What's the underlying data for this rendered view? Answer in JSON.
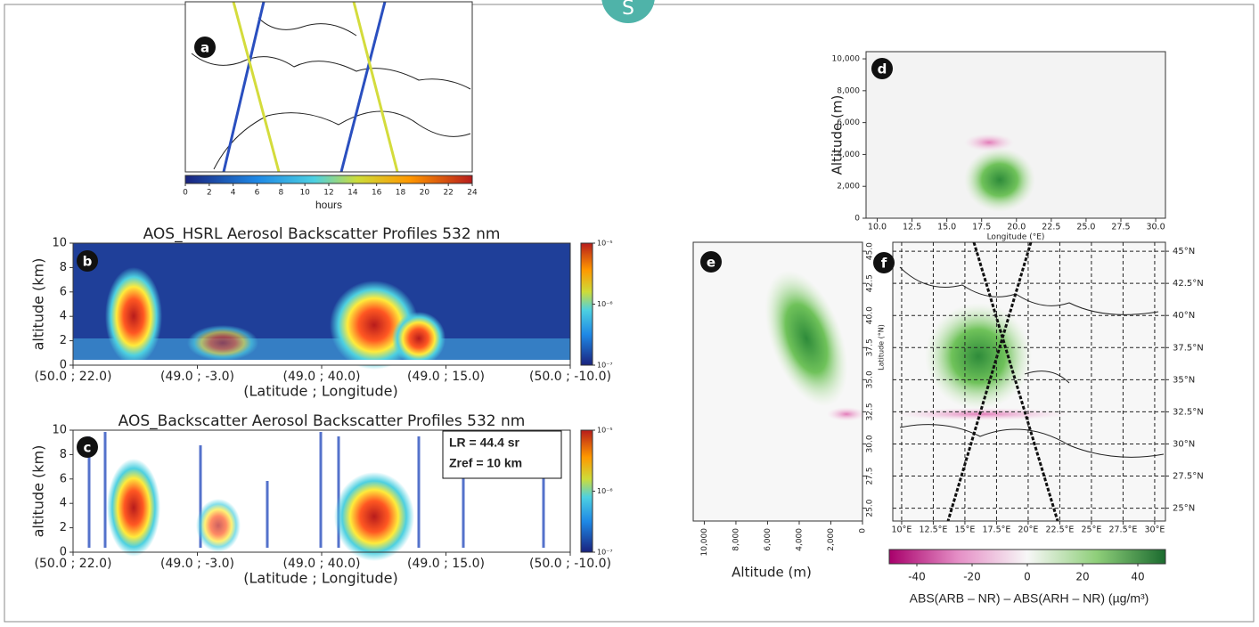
{
  "badge": "S",
  "chart_data": [
    {
      "type": "map",
      "panel": "a",
      "colorbar": {
        "label": "hours",
        "lim": [
          0,
          24
        ],
        "ticks": [
          0,
          2,
          4,
          6,
          8,
          10,
          12,
          14,
          16,
          18,
          20,
          22,
          24
        ]
      }
    },
    {
      "type": "heatmap",
      "panel": "b",
      "title": "AOS_HSRL Aerosol Backscatter Profiles 532 nm",
      "ylabel": "altitude (km)",
      "xlabel": "(Latitude ; Longitude)",
      "categories": [
        "(50.0 ; 22.0)",
        "(49.0 ; -3.0)",
        "(49.0 ; 40.0)",
        "(49.0 ; 15.0)",
        "(50.0 ; -10.0)"
      ],
      "ylim": [
        0,
        10
      ],
      "yticks": [
        0,
        2,
        4,
        6,
        8,
        10
      ],
      "colorbar": {
        "log": true,
        "lim": [
          1e-07,
          1e-05
        ],
        "ticks": [
          {
            "value": 1e-05,
            "label": "10⁻⁵"
          },
          {
            "value": 1e-06,
            "label": "10⁻⁶"
          },
          {
            "value": 1e-07,
            "label": "10⁻⁷"
          }
        ]
      }
    },
    {
      "type": "heatmap",
      "panel": "c",
      "title": "AOS_Backscatter Aerosol Backscatter Profiles 532 nm",
      "ylabel": "altitude (km)",
      "xlabel": "(Latitude ; Longitude)",
      "categories": [
        "(50.0 ; 22.0)",
        "(49.0 ; -3.0)",
        "(49.0 ; 40.0)",
        "(49.0 ; 15.0)",
        "(50.0 ; -10.0)"
      ],
      "ylim": [
        0,
        10
      ],
      "yticks": [
        0,
        2,
        4,
        6,
        8,
        10
      ],
      "annotations": [
        "LR = 44.4 sr",
        "Zref = 10 km"
      ],
      "colorbar": {
        "log": true,
        "lim": [
          1e-07,
          1e-05
        ],
        "ticks": [
          {
            "value": 1e-05,
            "label": "10⁻⁵"
          },
          {
            "value": 1e-06,
            "label": "10⁻⁶"
          },
          {
            "value": 1e-07,
            "label": "10⁻⁷"
          }
        ]
      }
    },
    {
      "type": "heatmap",
      "panel": "d",
      "ylabel": "Altitude (m)",
      "xlabel": "Longitude (°E)",
      "xlim": [
        9.2,
        30.7
      ],
      "xticks": [
        {
          "value": 10,
          "label": "10.0"
        },
        12.5,
        {
          "value": 15,
          "label": "15.0"
        },
        17.5,
        {
          "value": 20,
          "label": "20.0"
        },
        22.5,
        {
          "value": 25,
          "label": "25.0"
        },
        27.5,
        {
          "value": 30,
          "label": "30.0"
        }
      ],
      "ylim": [
        0,
        10450
      ],
      "yticks": [
        0,
        {
          "value": 2000,
          "label": "2,000"
        },
        {
          "value": 4000,
          "label": "4,000"
        },
        {
          "value": 6000,
          "label": "6,000"
        },
        {
          "value": 8000,
          "label": "8,000"
        },
        {
          "value": 10000,
          "label": "10,000"
        }
      ]
    },
    {
      "type": "heatmap",
      "panel": "e",
      "ylabel": "Latitude (°N)",
      "xlabel": "Altitude (m)",
      "xlim": [
        10700,
        0
      ],
      "xticks": [
        {
          "value": 10000,
          "label": "10,000"
        },
        {
          "value": 8000,
          "label": "8,000"
        },
        {
          "value": 6000,
          "label": "6,000"
        },
        {
          "value": 4000,
          "label": "4,000"
        },
        {
          "value": 2000,
          "label": "2,000"
        },
        0
      ],
      "ylim": [
        24,
        45.7
      ],
      "yticks": [
        {
          "value": 25,
          "label": "25.0"
        },
        27.5,
        {
          "value": 30,
          "label": "30.0"
        },
        32.5,
        {
          "value": 35,
          "label": "35.0"
        },
        37.5,
        {
          "value": 40,
          "label": "40.0"
        },
        42.5,
        {
          "value": 45,
          "label": "45.0"
        }
      ]
    },
    {
      "type": "map",
      "panel": "f",
      "grid": true,
      "xlim": [
        9.3,
        30.85
      ],
      "xticks": [
        {
          "value": 10,
          "label": "10°E"
        },
        {
          "value": 12.5,
          "label": "12.5°E"
        },
        {
          "value": 15,
          "label": "15°E"
        },
        {
          "value": 17.5,
          "label": "17.5°E"
        },
        {
          "value": 20,
          "label": "20°E"
        },
        {
          "value": 22.5,
          "label": "22.5°E"
        },
        {
          "value": 25,
          "label": "25°E"
        },
        {
          "value": 27.5,
          "label": "27.5°E"
        },
        {
          "value": 30,
          "label": "30°E"
        }
      ],
      "ylim": [
        24,
        45.7
      ],
      "yticks": [
        {
          "value": 25,
          "label": "25°N"
        },
        {
          "value": 27.5,
          "label": "27.5°N"
        },
        {
          "value": 30,
          "label": "30°N"
        },
        {
          "value": 32.5,
          "label": "32.5°N"
        },
        {
          "value": 35,
          "label": "35°N"
        },
        {
          "value": 37.5,
          "label": "37.5°N"
        },
        {
          "value": 40,
          "label": "40°N"
        },
        {
          "value": 42.5,
          "label": "42.5°N"
        },
        {
          "value": 45,
          "label": "45°N"
        }
      ],
      "colorbar": {
        "label": "ABS(ARB – NR) – ABS(ARH – NR) (µg/m³)",
        "lim": [
          -50,
          50
        ],
        "ticks": [
          -40,
          -20,
          0,
          20,
          40
        ]
      }
    }
  ]
}
